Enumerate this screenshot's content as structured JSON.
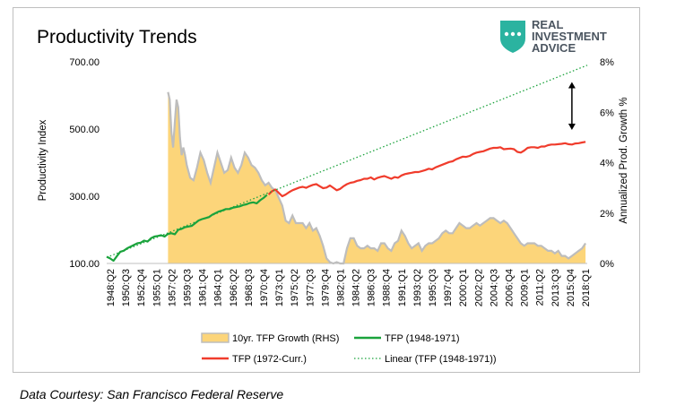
{
  "brand": {
    "line1": "REAL",
    "line2": "INVESTMENT",
    "line3": "ADVICE",
    "logo_color": "#2bb3a0",
    "text_color": "#4b5560"
  },
  "source_note": "Data Courtesy: San Francisco Federal Reserve",
  "chart_data": {
    "type": "line",
    "title": "Productivity Trends",
    "ylabel": "Productivity Index",
    "y2label": "Annualized Prod. Growth %",
    "ylim": [
      100,
      700
    ],
    "y2lim": [
      0,
      8
    ],
    "y_ticks": [
      "100.00",
      "300.00",
      "500.00",
      "700.00"
    ],
    "y_tick_values": [
      100,
      300,
      500,
      700
    ],
    "y2_ticks": [
      "0%",
      "2%",
      "4%",
      "6%",
      "8%"
    ],
    "y2_tick_values": [
      0,
      2,
      4,
      6,
      8
    ],
    "x_tick_labels": [
      "1948:Q2",
      "1950:Q3",
      "1952:Q4",
      "1955:Q1",
      "1957:Q2",
      "1959:Q3",
      "1961:Q4",
      "1964:Q1",
      "1966:Q2",
      "1968:Q3",
      "1970:Q4",
      "1973:Q1",
      "1975:Q2",
      "1977:Q3",
      "1979:Q4",
      "1982:Q1",
      "1984:Q2",
      "1986:Q3",
      "1988:Q4",
      "1991:Q1",
      "1993:Q2",
      "1995:Q3",
      "1997:Q4",
      "2000:Q1",
      "2002:Q2",
      "2004:Q3",
      "2006:Q4",
      "2009:Q1",
      "2011:Q2",
      "2013:Q3",
      "2015:Q4",
      "2018:Q1"
    ],
    "x_range": [
      1948.25,
      2018.75
    ],
    "grid": false,
    "legend_position": "bottom",
    "arrow_annotation": {
      "x": 2016.5,
      "y_from": 7.2,
      "y_to": 5.3
    },
    "series": [
      {
        "name": "10yr. TFP Growth (RHS)",
        "kind": "area",
        "axis": "right",
        "color": "#fcd57a",
        "stroke": "#bdbdbd",
        "x": [
          1957.25,
          1957.5,
          1957.75,
          1958.0,
          1958.25,
          1958.5,
          1958.75,
          1959.0,
          1959.25,
          1959.5,
          1959.75,
          1960.0,
          1960.5,
          1961.0,
          1961.5,
          1962.0,
          1962.5,
          1963.0,
          1963.5,
          1964.0,
          1964.5,
          1965.0,
          1965.5,
          1966.0,
          1966.5,
          1967.0,
          1967.5,
          1968.0,
          1968.5,
          1969.0,
          1969.5,
          1970.0,
          1970.5,
          1971.0,
          1971.5,
          1972.0,
          1972.5,
          1973.0,
          1973.5,
          1974.0,
          1974.5,
          1975.0,
          1975.5,
          1976.0,
          1976.5,
          1977.0,
          1977.5,
          1978.0,
          1978.5,
          1979.0,
          1979.5,
          1980.0,
          1980.5,
          1981.0,
          1981.5,
          1982.0,
          1982.5,
          1983.0,
          1983.5,
          1984.0,
          1984.5,
          1985.0,
          1985.5,
          1986.0,
          1986.5,
          1987.0,
          1987.5,
          1988.0,
          1988.5,
          1989.0,
          1989.5,
          1990.0,
          1990.5,
          1991.0,
          1991.5,
          1992.0,
          1992.5,
          1993.0,
          1993.5,
          1994.0,
          1994.5,
          1995.0,
          1995.5,
          1996.0,
          1996.5,
          1997.0,
          1997.5,
          1998.0,
          1998.5,
          1999.0,
          1999.5,
          2000.0,
          2000.5,
          2001.0,
          2001.5,
          2002.0,
          2002.5,
          2003.0,
          2003.5,
          2004.0,
          2004.5,
          2005.0,
          2005.5,
          2006.0,
          2006.5,
          2007.0,
          2007.5,
          2008.0,
          2008.5,
          2009.0,
          2009.5,
          2010.0,
          2010.5,
          2011.0,
          2011.5,
          2012.0,
          2012.5,
          2013.0,
          2013.5,
          2014.0,
          2014.5,
          2015.0,
          2015.5,
          2016.0,
          2016.5,
          2017.0,
          2017.5,
          2018.0,
          2018.5
        ],
        "values": [
          6.8,
          6.5,
          5.2,
          4.6,
          5.6,
          6.5,
          6.2,
          5.0,
          4.3,
          4.6,
          4.3,
          3.9,
          3.4,
          3.3,
          3.8,
          4.4,
          4.1,
          3.6,
          3.2,
          3.8,
          4.4,
          4.0,
          3.6,
          3.7,
          4.2,
          3.8,
          3.6,
          3.9,
          4.4,
          4.2,
          3.9,
          3.8,
          3.6,
          3.3,
          3.1,
          3.2,
          3.0,
          2.9,
          2.6,
          2.3,
          1.7,
          1.6,
          1.9,
          1.6,
          1.6,
          1.6,
          1.4,
          1.6,
          1.3,
          1.4,
          1.1,
          0.7,
          0.2,
          0.05,
          0.0,
          0.05,
          0.0,
          0.0,
          0.6,
          1.0,
          1.0,
          0.7,
          0.6,
          0.6,
          0.7,
          0.6,
          0.6,
          0.5,
          0.8,
          0.8,
          0.6,
          0.5,
          0.8,
          0.9,
          1.3,
          1.1,
          0.8,
          0.6,
          0.7,
          0.8,
          0.5,
          0.7,
          0.8,
          0.8,
          0.9,
          1.0,
          1.2,
          1.3,
          1.2,
          1.2,
          1.4,
          1.6,
          1.5,
          1.4,
          1.4,
          1.5,
          1.6,
          1.5,
          1.6,
          1.7,
          1.8,
          1.8,
          1.7,
          1.6,
          1.7,
          1.6,
          1.4,
          1.2,
          1.0,
          0.8,
          0.7,
          0.8,
          0.8,
          0.8,
          0.7,
          0.7,
          0.6,
          0.5,
          0.5,
          0.4,
          0.5,
          0.3,
          0.3,
          0.2,
          0.3,
          0.4,
          0.5,
          0.6,
          0.8
        ]
      },
      {
        "name": "TFP (1948-1971)",
        "kind": "line",
        "axis": "left",
        "color": "#1aa33c",
        "x": [
          1948.25,
          1948.75,
          1949.25,
          1949.75,
          1950.25,
          1950.75,
          1951.25,
          1951.75,
          1952.25,
          1952.75,
          1953.25,
          1953.75,
          1954.25,
          1954.75,
          1955.25,
          1955.75,
          1956.25,
          1956.75,
          1957.25,
          1957.75,
          1958.25,
          1958.75,
          1959.25,
          1959.75,
          1960.25,
          1960.75,
          1961.25,
          1961.75,
          1962.25,
          1962.75,
          1963.25,
          1963.75,
          1964.25,
          1964.75,
          1965.25,
          1965.75,
          1966.25,
          1966.75,
          1967.25,
          1967.75,
          1968.25,
          1968.75,
          1969.25,
          1969.75,
          1970.25,
          1970.75,
          1971.25,
          1971.75
        ],
        "values": [
          120,
          115,
          108,
          122,
          135,
          138,
          145,
          150,
          155,
          160,
          162,
          168,
          165,
          175,
          180,
          182,
          184,
          180,
          188,
          190,
          187,
          200,
          203,
          208,
          210,
          212,
          220,
          228,
          232,
          235,
          238,
          245,
          250,
          255,
          258,
          262,
          262,
          266,
          268,
          270,
          274,
          276,
          280,
          282,
          279,
          288,
          295,
          304
        ]
      },
      {
        "name": "TFP (1972-Curr.)",
        "kind": "line",
        "axis": "left",
        "color": "#f03c2c",
        "x": [
          1972.0,
          1972.5,
          1973.0,
          1973.5,
          1974.0,
          1974.5,
          1975.0,
          1975.5,
          1976.0,
          1976.5,
          1977.0,
          1977.5,
          1978.0,
          1978.5,
          1979.0,
          1979.5,
          1980.0,
          1980.5,
          1981.0,
          1981.5,
          1982.0,
          1982.5,
          1983.0,
          1983.5,
          1984.0,
          1984.5,
          1985.0,
          1985.5,
          1986.0,
          1986.5,
          1987.0,
          1987.5,
          1988.0,
          1988.5,
          1989.0,
          1989.5,
          1990.0,
          1990.5,
          1991.0,
          1991.5,
          1992.0,
          1992.5,
          1993.0,
          1993.5,
          1994.0,
          1994.5,
          1995.0,
          1995.5,
          1996.0,
          1996.5,
          1997.0,
          1997.5,
          1998.0,
          1998.5,
          1999.0,
          1999.5,
          2000.0,
          2000.5,
          2001.0,
          2001.5,
          2002.0,
          2002.5,
          2003.0,
          2003.5,
          2004.0,
          2004.5,
          2005.0,
          2005.5,
          2006.0,
          2006.5,
          2007.0,
          2007.5,
          2008.0,
          2008.5,
          2009.0,
          2009.5,
          2010.0,
          2010.5,
          2011.0,
          2011.5,
          2012.0,
          2012.5,
          2013.0,
          2013.5,
          2014.0,
          2014.5,
          2015.0,
          2015.5,
          2016.0,
          2016.5,
          2017.0,
          2017.5,
          2018.0,
          2018.5
        ],
        "values": [
          305,
          315,
          320,
          310,
          300,
          305,
          312,
          318,
          322,
          326,
          328,
          325,
          330,
          334,
          336,
          330,
          324,
          326,
          332,
          325,
          318,
          322,
          330,
          336,
          340,
          342,
          346,
          348,
          352,
          352,
          356,
          350,
          355,
          358,
          360,
          356,
          352,
          357,
          355,
          362,
          366,
          368,
          370,
          372,
          372,
          375,
          378,
          382,
          380,
          386,
          390,
          394,
          398,
          402,
          404,
          410,
          414,
          418,
          417,
          420,
          426,
          430,
          432,
          434,
          438,
          442,
          444,
          444,
          446,
          440,
          441,
          442,
          440,
          432,
          430,
          436,
          444,
          446,
          446,
          444,
          448,
          448,
          452,
          454,
          454,
          455,
          456,
          458,
          455,
          454,
          457,
          458,
          460,
          462
        ]
      },
      {
        "name": "Linear (TFP (1948-1971))",
        "kind": "dotted-line",
        "axis": "left",
        "color": "#1aa33c",
        "x": [
          1948.25,
          2018.75
        ],
        "values": [
          118,
          690
        ]
      }
    ]
  }
}
